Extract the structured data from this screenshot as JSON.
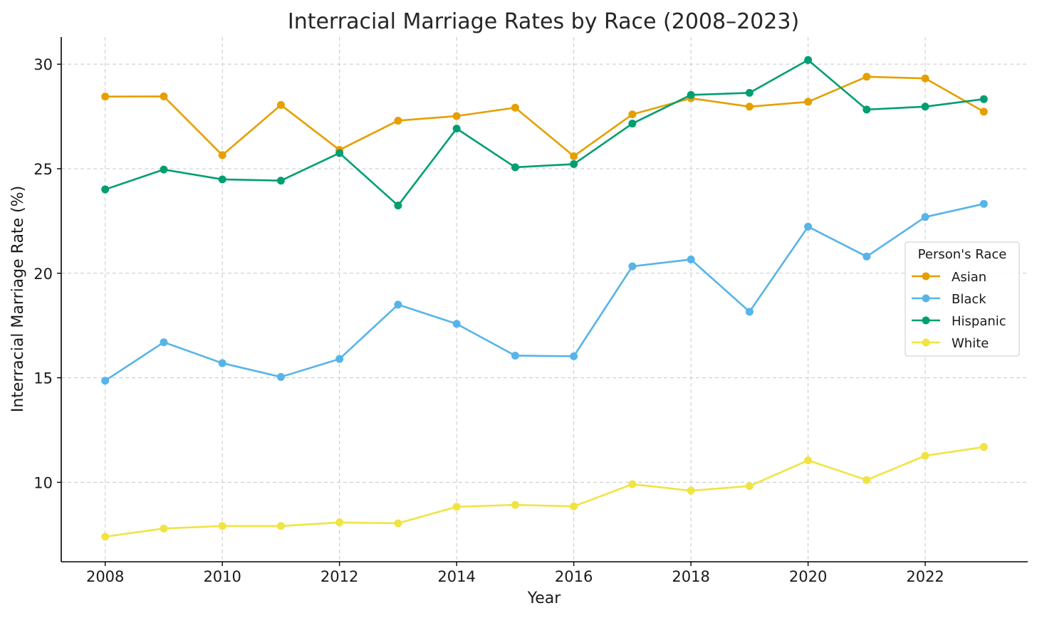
{
  "chart_data": {
    "type": "line",
    "title": "Interracial Marriage Rates by Race (2008–2023)",
    "xlabel": "Year",
    "ylabel": "Interracial Marriage Rate (%)",
    "x": [
      2008,
      2009,
      2010,
      2011,
      2012,
      2013,
      2014,
      2015,
      2016,
      2017,
      2018,
      2019,
      2020,
      2021,
      2022,
      2023
    ],
    "xlim": [
      2007.25,
      2023.75
    ],
    "ylim": [
      6.2,
      31.3
    ],
    "xticks": [
      2008,
      2010,
      2012,
      2014,
      2016,
      2018,
      2020,
      2022
    ],
    "yticks": [
      10,
      15,
      20,
      25,
      30
    ],
    "grid": true,
    "legend": {
      "title": "Person's Race",
      "position": "center-right"
    },
    "series": [
      {
        "name": "Asian",
        "color": "#E69F00",
        "values": [
          28.45,
          28.46,
          25.65,
          28.05,
          25.9,
          27.3,
          27.52,
          27.92,
          25.6,
          27.6,
          28.37,
          27.97,
          28.2,
          29.4,
          29.32,
          27.73
        ]
      },
      {
        "name": "Black",
        "color": "#56B4E9",
        "values": [
          14.86,
          16.7,
          15.7,
          15.04,
          15.9,
          18.5,
          17.58,
          16.06,
          16.03,
          20.33,
          20.66,
          18.16,
          22.23,
          20.8,
          22.69,
          23.32
        ]
      },
      {
        "name": "Hispanic",
        "color": "#009E73",
        "values": [
          24.01,
          24.96,
          24.49,
          24.43,
          25.75,
          23.24,
          26.92,
          25.07,
          25.22,
          27.16,
          28.53,
          28.63,
          30.2,
          27.83,
          27.97,
          28.33
        ]
      },
      {
        "name": "White",
        "color": "#F0E442",
        "values": [
          7.4,
          7.79,
          7.91,
          7.91,
          8.08,
          8.04,
          8.83,
          8.92,
          8.85,
          9.91,
          9.6,
          9.82,
          11.05,
          10.11,
          11.27,
          11.69
        ]
      }
    ]
  }
}
